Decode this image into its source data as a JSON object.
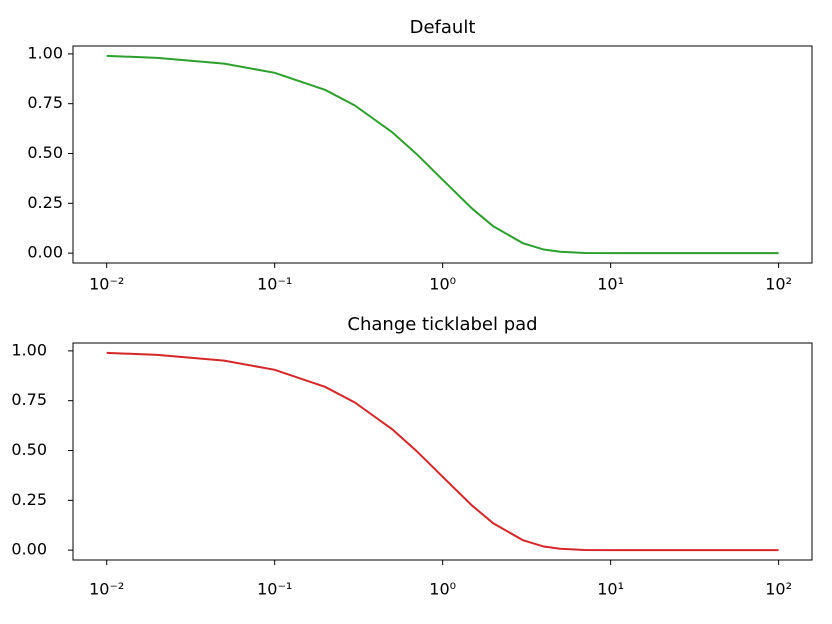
{
  "chart_data": [
    {
      "type": "line",
      "title": "Default",
      "xscale": "log",
      "color": "#2ca02c",
      "x": [
        0.01,
        0.02,
        0.05,
        0.1,
        0.2,
        0.3,
        0.5,
        0.7,
        1,
        1.5,
        2,
        3,
        4,
        5,
        7,
        10,
        20,
        50,
        100
      ],
      "values": [
        0.99,
        0.98,
        0.951,
        0.905,
        0.819,
        0.741,
        0.607,
        0.497,
        0.368,
        0.223,
        0.135,
        0.05,
        0.018,
        0.007,
        0.001,
        0,
        0,
        0,
        0
      ],
      "xlim": [
        0.0063,
        158
      ],
      "ylim": [
        -0.0495,
        1.0395
      ],
      "xticks": [
        {
          "value": 0.01,
          "label": "10⁻²"
        },
        {
          "value": 0.1,
          "label": "10⁻¹"
        },
        {
          "value": 1,
          "label": "10⁰"
        },
        {
          "value": 10,
          "label": "10¹"
        },
        {
          "value": 100,
          "label": "10²"
        }
      ],
      "yticks": [
        {
          "value": 0,
          "label": "0.00"
        },
        {
          "value": 0.25,
          "label": "0.25"
        },
        {
          "value": 0.5,
          "label": "0.50"
        },
        {
          "value": 0.75,
          "label": "0.75"
        },
        {
          "value": 1,
          "label": "1.00"
        }
      ]
    },
    {
      "type": "line",
      "title": "Change ticklabel pad",
      "xscale": "log",
      "color": "#d62728",
      "x": [
        0.01,
        0.02,
        0.05,
        0.1,
        0.2,
        0.3,
        0.5,
        0.7,
        1,
        1.5,
        2,
        3,
        4,
        5,
        7,
        10,
        20,
        50,
        100
      ],
      "values": [
        0.99,
        0.98,
        0.951,
        0.905,
        0.819,
        0.741,
        0.607,
        0.497,
        0.368,
        0.223,
        0.135,
        0.05,
        0.018,
        0.007,
        0.001,
        0,
        0,
        0,
        0
      ],
      "xlim": [
        0.0063,
        158
      ],
      "ylim": [
        -0.0495,
        1.0395
      ],
      "xticks": [
        {
          "value": 0.01,
          "label": "10⁻²"
        },
        {
          "value": 0.1,
          "label": "10⁻¹"
        },
        {
          "value": 1,
          "label": "10⁰"
        },
        {
          "value": 10,
          "label": "10¹"
        },
        {
          "value": 100,
          "label": "10²"
        }
      ],
      "yticks": [
        {
          "value": 0,
          "label": "0.00"
        },
        {
          "value": 0.25,
          "label": "0.25"
        },
        {
          "value": 0.5,
          "label": "0.50"
        },
        {
          "value": 0.75,
          "label": "0.75"
        },
        {
          "value": 1,
          "label": "1.00"
        }
      ]
    }
  ]
}
